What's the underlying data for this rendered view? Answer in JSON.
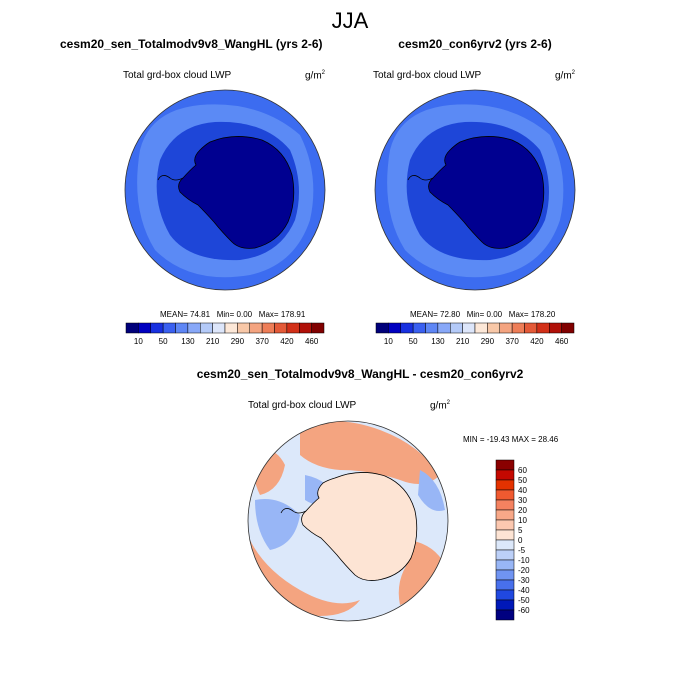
{
  "main_title": "JJA",
  "panels": [
    {
      "title": "cesm20_sen_Totalmodv9v8_WangHL (yrs 2-6)",
      "variable": "Total grd-box cloud LWP",
      "units": "g/m",
      "units_exp": "2",
      "stats": {
        "mean_label": "MEAN=",
        "mean": "74.81",
        "min_label": "Min=",
        "min": "0.00",
        "max_label": "Max=",
        "max": "178.91"
      }
    },
    {
      "title": "cesm20_con6yrv2 (yrs 2-6)",
      "variable": "Total grd-box cloud LWP",
      "units": "g/m",
      "units_exp": "2",
      "stats": {
        "mean_label": "MEAN=",
        "mean": "72.80",
        "min_label": "Min=",
        "min": "0.00",
        "max_label": "Max=",
        "max": "178.20"
      }
    },
    {
      "title": "cesm20_sen_Totalmodv9v8_WangHL - cesm20_con6yrv2",
      "variable": "Total grd-box cloud LWP",
      "units": "g/m",
      "units_exp": "2",
      "minmax": "MIN = -19.43 MAX =  28.46"
    }
  ],
  "colorbar_abs": {
    "labels": [
      "10",
      "50",
      "130",
      "210",
      "290",
      "370",
      "420",
      "460"
    ],
    "colors": [
      "#00007a",
      "#0000c0",
      "#1830e0",
      "#3a60f0",
      "#5e86f5",
      "#88a8f8",
      "#b4caf8",
      "#dde6fa",
      "#fde8d8",
      "#f8c8a8",
      "#f4a480",
      "#ee7e58",
      "#e45a38",
      "#d23018",
      "#b01008",
      "#800000"
    ]
  },
  "colorbar_diff": {
    "labels": [
      "60",
      "50",
      "40",
      "30",
      "20",
      "10",
      "5",
      "0",
      "-5",
      "-10",
      "-20",
      "-30",
      "-40",
      "-50",
      "-60"
    ],
    "colors": [
      "#8a0000",
      "#c40800",
      "#e43200",
      "#f05a30",
      "#f48260",
      "#f8a888",
      "#fcc8b0",
      "#fde4d4",
      "#dce8fa",
      "#bcd0f8",
      "#98b6f6",
      "#7094f2",
      "#4870ec",
      "#2048e0",
      "#0018b8",
      "#000080"
    ]
  },
  "maps": {
    "panel1": {
      "ocean_color": "#3c6cf0",
      "ring_color": "#5b8af5",
      "inner_color": "#1e46d8",
      "continent_color": "#000090"
    },
    "panel2": {
      "ocean_color": "#3c6cf0",
      "ring_color": "#5b8af5",
      "inner_color": "#1e46d8",
      "continent_color": "#000090"
    },
    "panel3": {
      "base_color": "#dce8fa",
      "warm_color": "#f4a480",
      "cool_color": "#98b6f6",
      "continent_color": "#fde4d4"
    }
  }
}
